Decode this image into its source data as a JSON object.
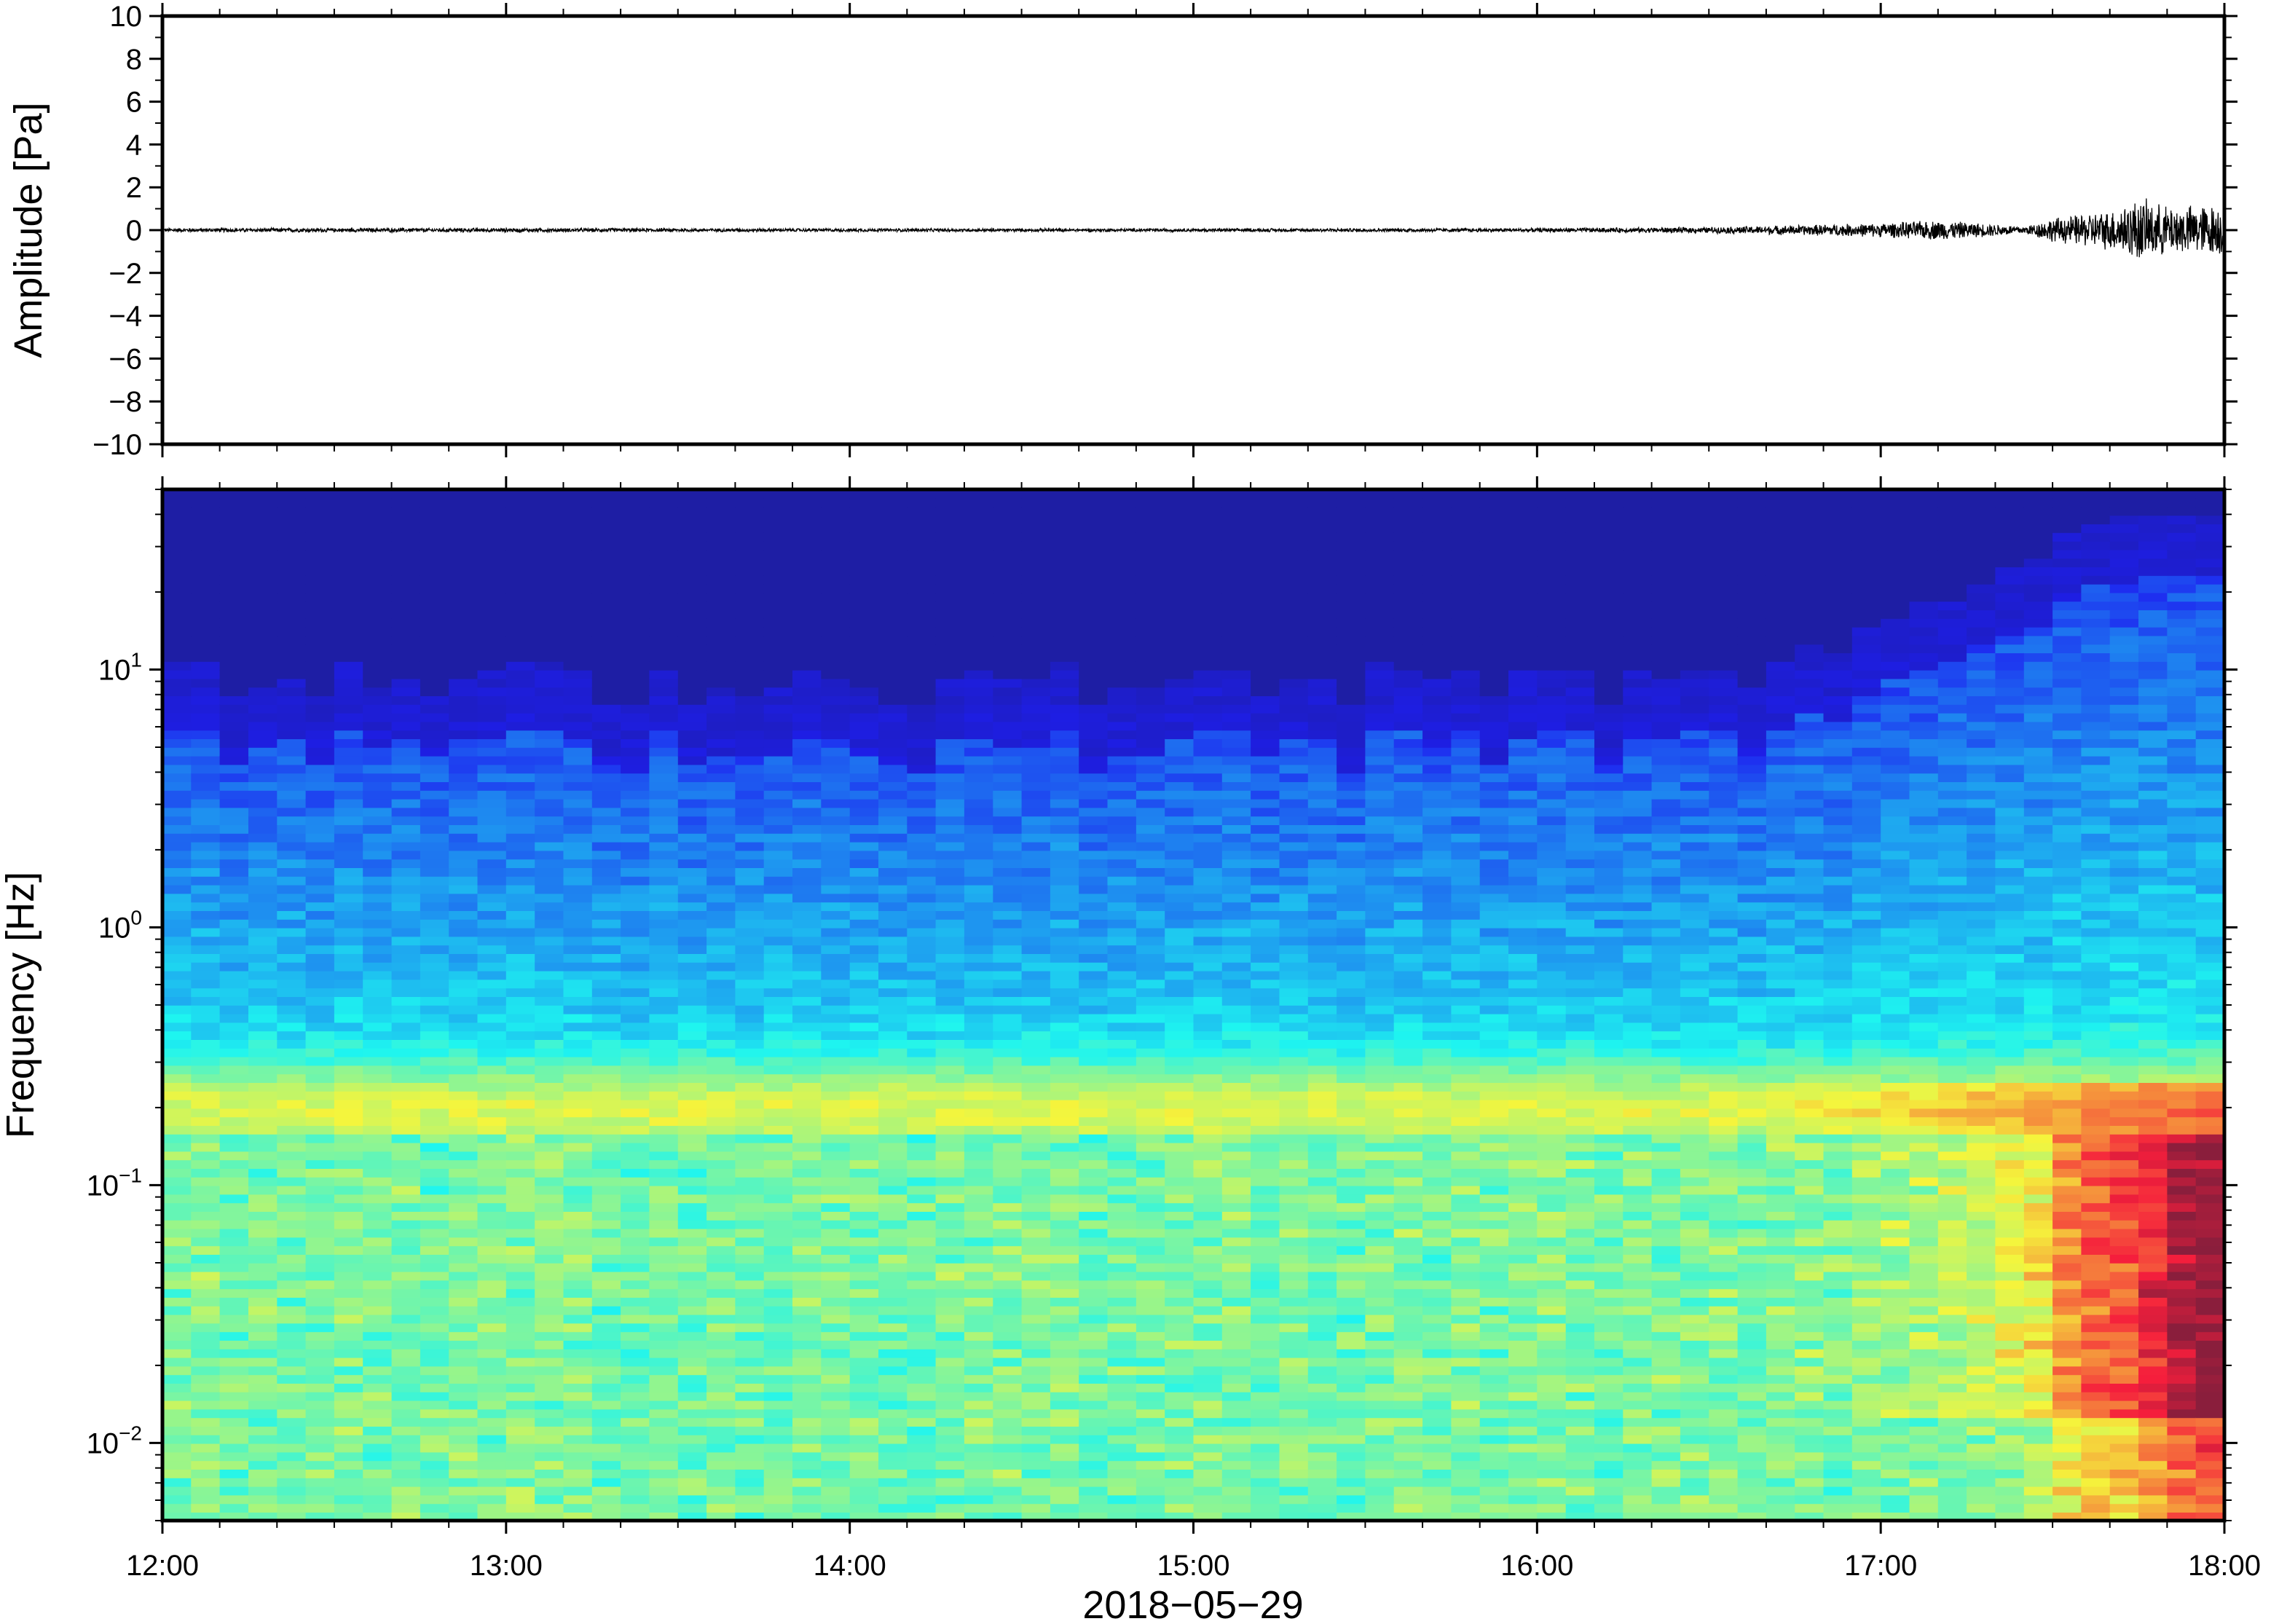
{
  "chart_data": [
    {
      "type": "line",
      "ylabel": "Amplitude [Pa]",
      "ylim": [
        -10,
        10
      ],
      "yticks": [
        10,
        8,
        6,
        4,
        2,
        0,
        -2,
        -4,
        -6,
        -8,
        -10
      ],
      "ytick_labels": [
        "10",
        "8",
        "6",
        "4",
        "2",
        "0",
        "−2",
        "−4",
        "−6",
        "−8",
        "−10"
      ],
      "xlim": [
        "12:00",
        "18:00"
      ],
      "series": [
        {
          "x": [
            "12:00",
            "13:00",
            "14:00",
            "15:00",
            "16:00",
            "16:30",
            "17:00",
            "17:10",
            "17:25",
            "17:30",
            "17:40",
            "17:45",
            "17:50",
            "18:00"
          ],
          "y_envelope": [
            0.1,
            0.1,
            0.08,
            0.08,
            0.1,
            0.15,
            0.35,
            0.5,
            0.2,
            0.6,
            1.0,
            1.6,
            1.2,
            1.3
          ]
        }
      ]
    },
    {
      "type": "heatmap",
      "ylabel": "Frequency [Hz]",
      "xlabel": "2018−05−29",
      "yscale": "log",
      "ylim": [
        0.005,
        50
      ],
      "ytick_labels": [
        {
          "value": 10,
          "base": "10",
          "exp": "1"
        },
        {
          "value": 1,
          "base": "10",
          "exp": "0"
        },
        {
          "value": 0.1,
          "base": "10",
          "exp": "−1"
        },
        {
          "value": 0.01,
          "base": "10",
          "exp": "−2"
        }
      ],
      "x_tick_labels": [
        "12:00",
        "13:00",
        "14:00",
        "15:00",
        "16:00",
        "17:00",
        "18:00"
      ],
      "xlim": [
        "12:00",
        "18:00"
      ],
      "colormap": "jet",
      "colors": {
        "low": "#0d0075",
        "mid": "#5ee6dc",
        "high": "#f34a4a"
      },
      "features": [
        {
          "name": "microbarom band",
          "frequency_hz": 0.2
        },
        {
          "name": "high-frequency cutoff",
          "frequency_hz_range": [
            2,
            15
          ]
        },
        {
          "name": "low-frequency increase",
          "time_range": [
            "17:20",
            "18:00"
          ],
          "frequency_hz_range": [
            0.015,
            0.15
          ]
        }
      ]
    }
  ]
}
